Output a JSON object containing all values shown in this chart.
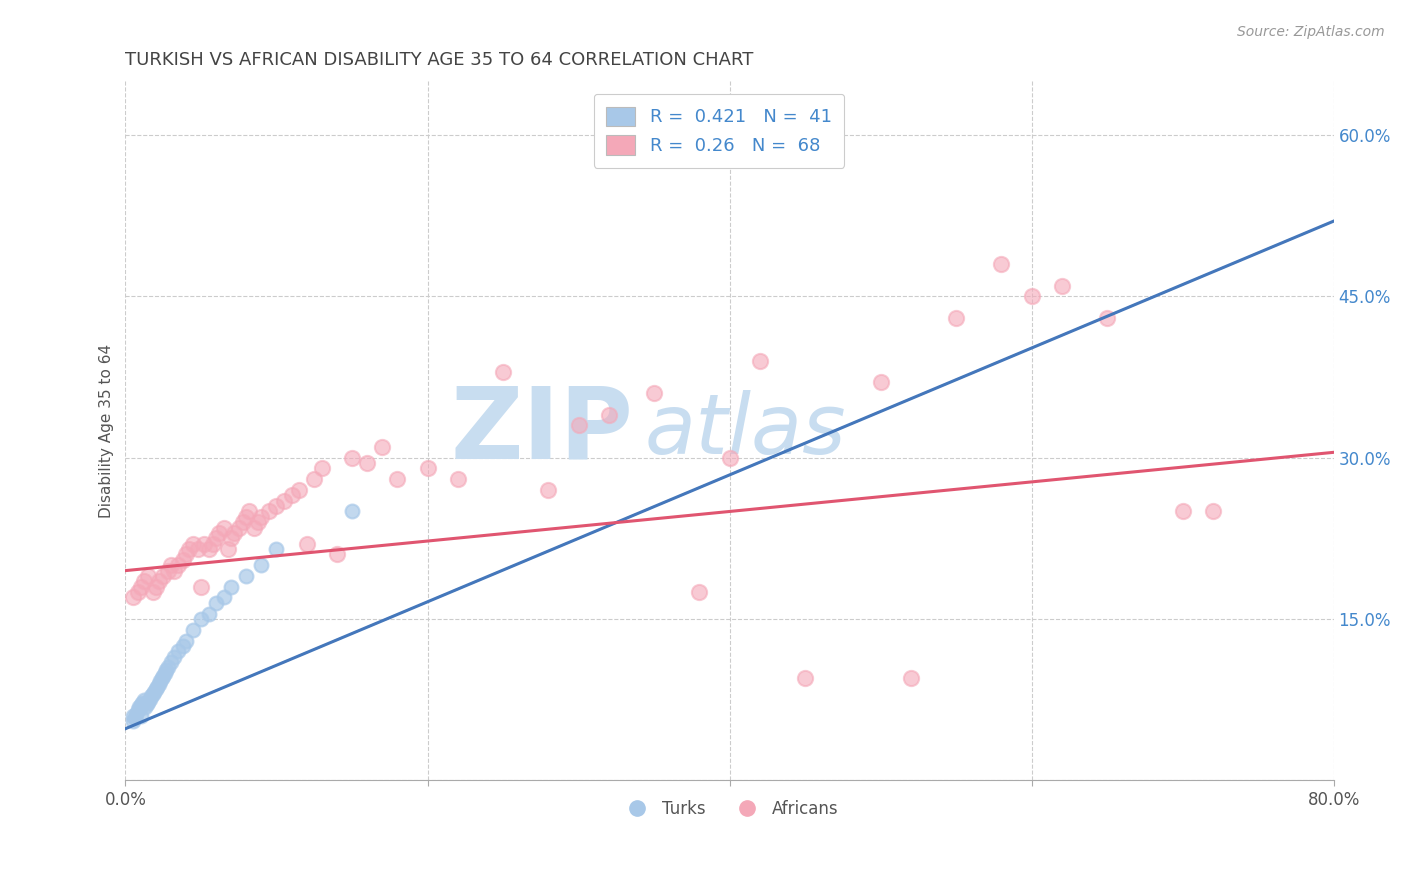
{
  "title": "TURKISH VS AFRICAN DISABILITY AGE 35 TO 64 CORRELATION CHART",
  "source": "Source: ZipAtlas.com",
  "ylabel": "Disability Age 35 to 64",
  "xlim": [
    0.0,
    0.8
  ],
  "ylim": [
    0.0,
    0.65
  ],
  "xticks": [
    0.0,
    0.2,
    0.4,
    0.6,
    0.8
  ],
  "yticks": [
    0.0,
    0.15,
    0.3,
    0.45,
    0.6
  ],
  "xticklabels": [
    "0.0%",
    "",
    "",
    "",
    "80.0%"
  ],
  "yticklabels": [
    "",
    "15.0%",
    "30.0%",
    "45.0%",
    "60.0%"
  ],
  "turks_R": 0.421,
  "turks_N": 41,
  "africans_R": 0.26,
  "africans_N": 68,
  "turks_color": "#a8c8e8",
  "africans_color": "#f4a8b8",
  "turks_line_color": "#4477bb",
  "africans_line_color": "#e05570",
  "watermark_zip_color": "#c8ddf0",
  "watermark_atlas_color": "#c8ddf0",
  "title_color": "#444444",
  "stat_color": "#4488cc",
  "background_color": "#ffffff",
  "turks_x": [
    0.005,
    0.005,
    0.006,
    0.007,
    0.008,
    0.009,
    0.01,
    0.01,
    0.011,
    0.012,
    0.013,
    0.014,
    0.015,
    0.016,
    0.017,
    0.018,
    0.019,
    0.02,
    0.021,
    0.022,
    0.023,
    0.024,
    0.025,
    0.026,
    0.027,
    0.028,
    0.03,
    0.032,
    0.035,
    0.038,
    0.04,
    0.045,
    0.05,
    0.055,
    0.06,
    0.065,
    0.07,
    0.08,
    0.09,
    0.1,
    0.15
  ],
  "turks_y": [
    0.055,
    0.06,
    0.058,
    0.062,
    0.065,
    0.068,
    0.06,
    0.07,
    0.072,
    0.075,
    0.068,
    0.071,
    0.073,
    0.076,
    0.078,
    0.08,
    0.082,
    0.085,
    0.087,
    0.09,
    0.092,
    0.095,
    0.097,
    0.1,
    0.103,
    0.105,
    0.11,
    0.115,
    0.12,
    0.125,
    0.13,
    0.14,
    0.15,
    0.155,
    0.165,
    0.17,
    0.18,
    0.19,
    0.2,
    0.215,
    0.25
  ],
  "africans_x": [
    0.005,
    0.008,
    0.01,
    0.012,
    0.015,
    0.018,
    0.02,
    0.022,
    0.025,
    0.028,
    0.03,
    0.032,
    0.035,
    0.038,
    0.04,
    0.042,
    0.045,
    0.048,
    0.05,
    0.052,
    0.055,
    0.058,
    0.06,
    0.062,
    0.065,
    0.068,
    0.07,
    0.072,
    0.075,
    0.078,
    0.08,
    0.082,
    0.085,
    0.088,
    0.09,
    0.095,
    0.1,
    0.105,
    0.11,
    0.115,
    0.12,
    0.125,
    0.13,
    0.14,
    0.15,
    0.16,
    0.17,
    0.18,
    0.2,
    0.22,
    0.25,
    0.28,
    0.3,
    0.32,
    0.35,
    0.38,
    0.4,
    0.42,
    0.45,
    0.5,
    0.52,
    0.55,
    0.58,
    0.6,
    0.62,
    0.65,
    0.7,
    0.72
  ],
  "africans_y": [
    0.17,
    0.175,
    0.18,
    0.185,
    0.19,
    0.175,
    0.18,
    0.185,
    0.19,
    0.195,
    0.2,
    0.195,
    0.2,
    0.205,
    0.21,
    0.215,
    0.22,
    0.215,
    0.18,
    0.22,
    0.215,
    0.22,
    0.225,
    0.23,
    0.235,
    0.215,
    0.225,
    0.23,
    0.235,
    0.24,
    0.245,
    0.25,
    0.235,
    0.24,
    0.245,
    0.25,
    0.255,
    0.26,
    0.265,
    0.27,
    0.22,
    0.28,
    0.29,
    0.21,
    0.3,
    0.295,
    0.31,
    0.28,
    0.29,
    0.28,
    0.38,
    0.27,
    0.33,
    0.34,
    0.36,
    0.175,
    0.3,
    0.39,
    0.095,
    0.37,
    0.095,
    0.43,
    0.48,
    0.45,
    0.46,
    0.43,
    0.25,
    0.25
  ],
  "turks_line_x0": 0.0,
  "turks_line_y0": 0.048,
  "turks_line_x1": 0.8,
  "turks_line_y1": 0.52,
  "africans_line_x0": 0.0,
  "africans_line_y0": 0.195,
  "africans_line_x1": 0.8,
  "africans_line_y1": 0.305
}
